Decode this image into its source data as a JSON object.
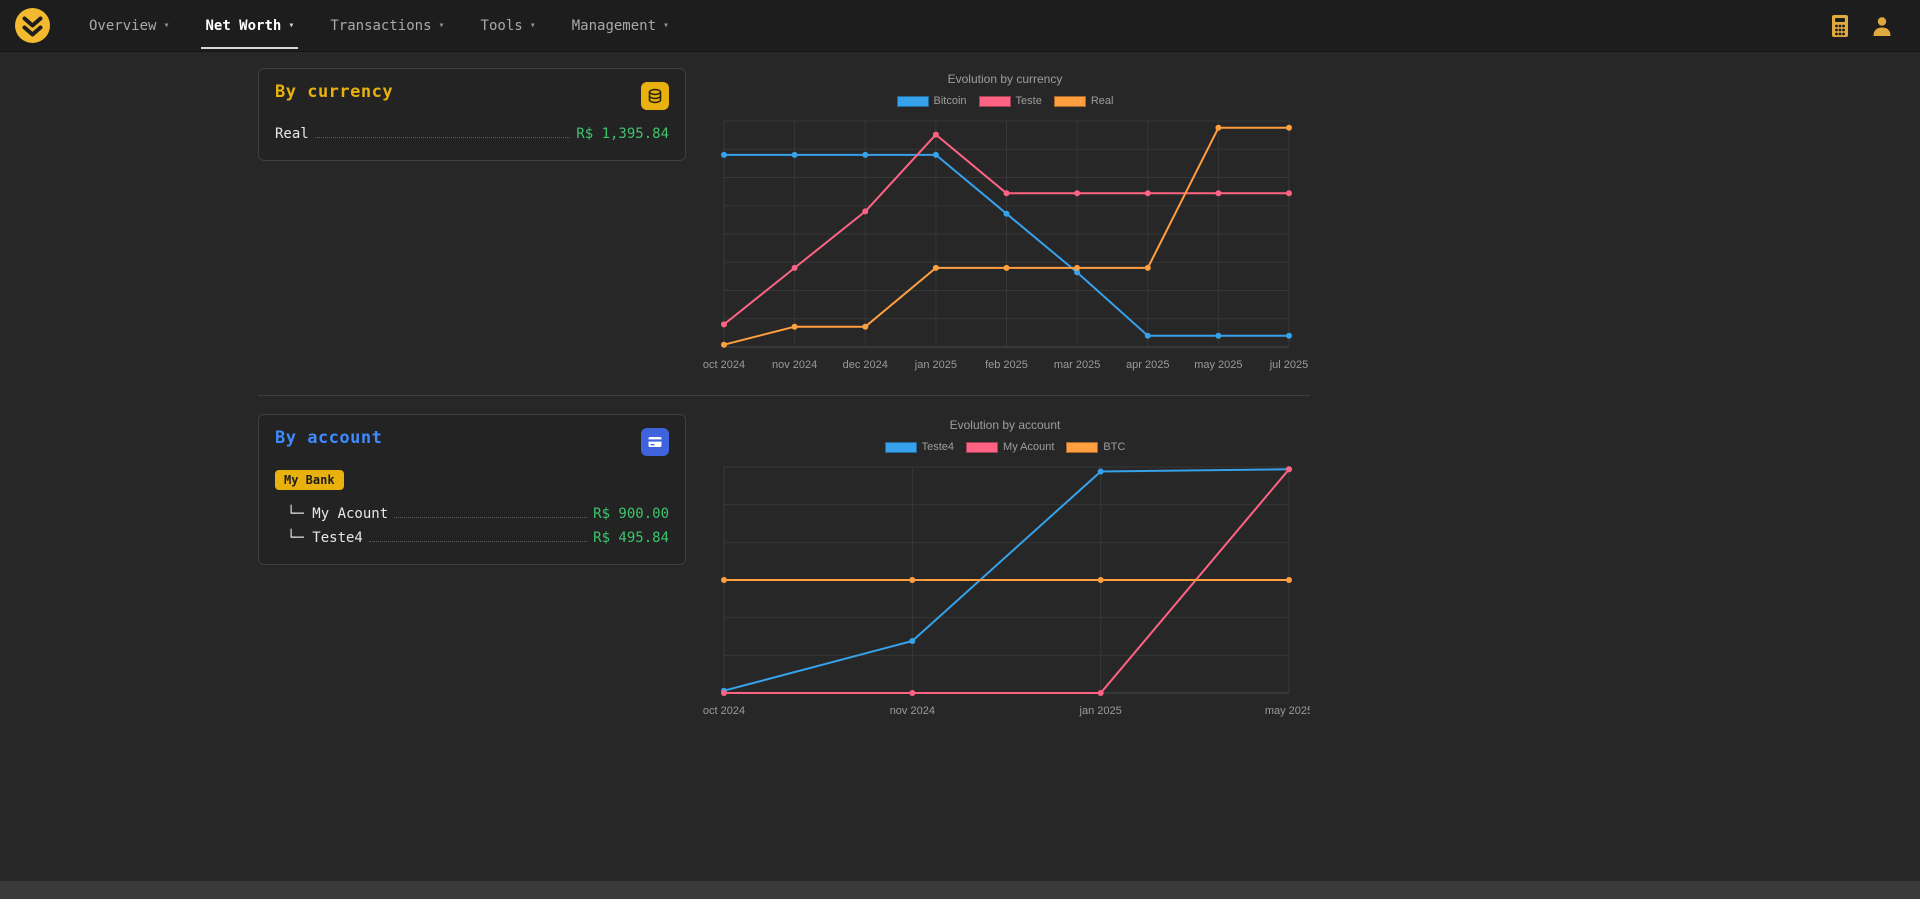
{
  "navbar": {
    "items": [
      {
        "label": "Overview",
        "active": false
      },
      {
        "label": "Net Worth",
        "active": true
      },
      {
        "label": "Transactions",
        "active": false
      },
      {
        "label": "Tools",
        "active": false
      },
      {
        "label": "Management",
        "active": false
      }
    ],
    "right_icons": [
      "calculator",
      "user"
    ]
  },
  "colors": {
    "accent_yellow": "#e9b10e",
    "accent_blue": "#3d8bfd",
    "value_green": "#3ec46d",
    "chart_blue": "#36a2eb",
    "chart_pink": "#ff6384",
    "chart_orange": "#ff9f40"
  },
  "currency_card": {
    "title": "By currency",
    "rows": [
      {
        "label": "Real",
        "value": "R$ 1,395.84"
      }
    ]
  },
  "account_card": {
    "title": "By account",
    "badge": "My Bank",
    "rows": [
      {
        "label": "└─ My Acount",
        "value": "R$ 900.00"
      },
      {
        "label": "└─ Teste4",
        "value": "R$ 495.84"
      }
    ]
  },
  "chart_data": [
    {
      "type": "line",
      "title": "Evolution by currency",
      "categories": [
        "oct 2024",
        "nov 2024",
        "dec 2024",
        "jan 2025",
        "feb 2025",
        "mar 2025",
        "apr 2025",
        "may 2025",
        "jul 2025"
      ],
      "series": [
        {
          "name": "Bitcoin",
          "color": "#36a2eb",
          "values": [
            85,
            85,
            85,
            85,
            59,
            33,
            5,
            5,
            5
          ]
        },
        {
          "name": "Teste",
          "color": "#ff6384",
          "values": [
            10,
            35,
            60,
            94,
            68,
            68,
            68,
            68,
            68
          ]
        },
        {
          "name": "Real",
          "color": "#ff9f40",
          "values": [
            1,
            9,
            9,
            35,
            35,
            35,
            35,
            97,
            97
          ]
        }
      ],
      "ylim": [
        0,
        100
      ],
      "grid": true,
      "grid_rows": 8,
      "legend_position": "top",
      "note": "y-axis has no visible tick labels; values are relative estimates (0-100 of plot height)"
    },
    {
      "type": "line",
      "title": "Evolution by account",
      "categories": [
        "oct 2024",
        "nov 2024",
        "jan 2025",
        "may 2025"
      ],
      "series": [
        {
          "name": "Teste4",
          "color": "#36a2eb",
          "values": [
            1,
            23,
            98,
            99
          ]
        },
        {
          "name": "My Acount",
          "color": "#ff6384",
          "values": [
            0,
            0,
            0,
            99
          ]
        },
        {
          "name": "BTC",
          "color": "#ff9f40",
          "values": [
            50,
            50,
            50,
            50
          ]
        }
      ],
      "ylim": [
        0,
        100
      ],
      "grid": true,
      "grid_rows": 6,
      "legend_position": "top",
      "note": "y-axis has no visible tick labels; values are relative estimates (0-100 of plot height)"
    }
  ]
}
